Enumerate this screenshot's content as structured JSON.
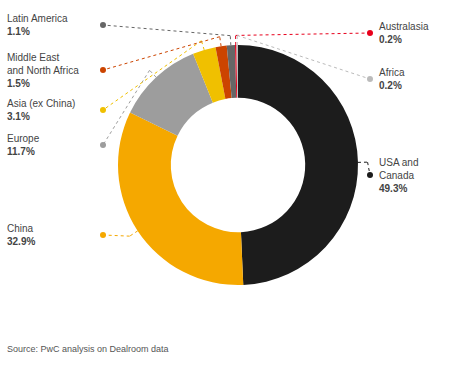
{
  "chart_data": {
    "type": "donut",
    "categories": [
      "USA and\nCanada",
      "China",
      "Europe",
      "Asia (ex China)",
      "Middle East\nand North Africa",
      "Latin America",
      "Australasia",
      "Africa"
    ],
    "values": [
      49.3,
      32.9,
      11.7,
      3.1,
      1.5,
      1.1,
      0.2,
      0.2
    ],
    "value_labels": [
      "49.3%",
      "32.9%",
      "11.7%",
      "3.1%",
      "1.5%",
      "1.1%",
      "0.2%",
      "0.2%"
    ],
    "colors": [
      "#1c1c1c",
      "#f5a800",
      "#9d9d9d",
      "#f0c000",
      "#cc4400",
      "#666666",
      "#e8001c",
      "#bbbbbb"
    ],
    "data_labels": true,
    "annotations": [
      "Source: PwC analysis on Dealroom data"
    ]
  }
}
